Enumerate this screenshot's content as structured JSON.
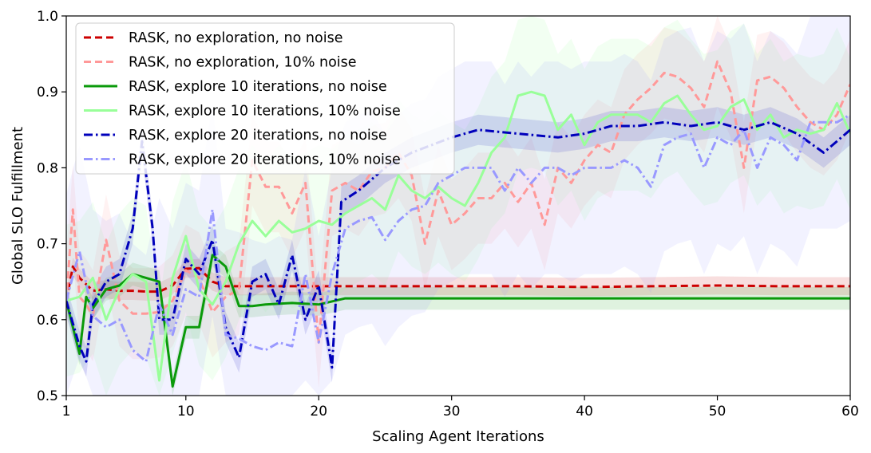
{
  "chart_data": {
    "type": "line",
    "title": "",
    "xlabel": "Scaling Agent Iterations",
    "ylabel": "Global SLO Fulfillment",
    "xlim": [
      1,
      60
    ],
    "ylim": [
      0.5,
      1.0
    ],
    "xticks": [
      1,
      10,
      20,
      30,
      40,
      50,
      60
    ],
    "xtick_labels": [
      "1",
      "10",
      "20",
      "30",
      "40",
      "50",
      "60"
    ],
    "yticks": [
      0.5,
      0.6,
      0.7,
      0.8,
      0.9,
      1.0
    ],
    "ytick_labels": [
      "0.5",
      "0.6",
      "0.7",
      "0.8",
      "0.9",
      "1.0"
    ],
    "grid": false,
    "legend_position": "top-left",
    "series": [
      {
        "name": "RASK, no exploration, no noise",
        "color": "#cc0000",
        "style": "dashed",
        "band": 0.012,
        "x": [
          1,
          1.5,
          2,
          3,
          4,
          5,
          6,
          7,
          8,
          9,
          10,
          11,
          12,
          13,
          14,
          16,
          18,
          20,
          22,
          25,
          30,
          35,
          40,
          45,
          50,
          55,
          60
        ],
        "values": [
          0.625,
          0.67,
          0.655,
          0.638,
          0.64,
          0.638,
          0.638,
          0.637,
          0.637,
          0.645,
          0.667,
          0.668,
          0.65,
          0.644,
          0.644,
          0.644,
          0.644,
          0.644,
          0.644,
          0.644,
          0.644,
          0.644,
          0.643,
          0.644,
          0.645,
          0.644,
          0.644
        ]
      },
      {
        "name": "RASK, no exploration, 10% noise",
        "color": "#ff9999",
        "style": "dashed",
        "band": 0.06,
        "x": [
          1,
          1.5,
          2,
          2.5,
          3,
          4,
          5,
          6,
          7,
          8,
          9,
          10,
          11,
          12,
          13,
          14,
          15,
          16,
          17,
          18,
          19,
          20,
          21,
          22,
          23,
          24,
          25,
          26,
          27,
          28,
          29,
          30,
          31,
          32,
          33,
          34,
          35,
          36,
          37,
          38,
          39,
          40,
          41,
          42,
          43,
          44,
          45,
          46,
          47,
          48,
          49,
          50,
          51,
          52,
          53,
          54,
          55,
          56,
          57,
          58,
          59,
          60
        ],
        "values": [
          0.625,
          0.745,
          0.63,
          0.62,
          0.605,
          0.705,
          0.625,
          0.608,
          0.608,
          0.61,
          0.625,
          0.665,
          0.655,
          0.61,
          0.63,
          0.64,
          0.81,
          0.775,
          0.775,
          0.74,
          0.78,
          0.57,
          0.77,
          0.78,
          0.77,
          0.795,
          0.8,
          0.82,
          0.79,
          0.7,
          0.77,
          0.725,
          0.74,
          0.76,
          0.76,
          0.78,
          0.755,
          0.78,
          0.725,
          0.8,
          0.78,
          0.81,
          0.83,
          0.82,
          0.87,
          0.89,
          0.905,
          0.925,
          0.92,
          0.905,
          0.88,
          0.94,
          0.9,
          0.8,
          0.915,
          0.92,
          0.905,
          0.88,
          0.86,
          0.85,
          0.87,
          0.91
        ]
      },
      {
        "name": "RASK, explore 10 iterations, no noise",
        "color": "#0a9a0a",
        "style": "solid",
        "band": 0.015,
        "x": [
          1,
          2,
          2.5,
          3,
          4,
          5,
          6,
          7,
          8,
          9,
          10,
          11,
          12,
          13,
          14,
          15,
          16,
          18,
          20,
          22,
          25,
          28,
          30,
          35,
          40,
          45,
          50,
          55,
          60
        ],
        "values": [
          0.625,
          0.555,
          0.63,
          0.615,
          0.64,
          0.645,
          0.66,
          0.655,
          0.65,
          0.512,
          0.59,
          0.59,
          0.685,
          0.67,
          0.618,
          0.618,
          0.62,
          0.622,
          0.62,
          0.628,
          0.628,
          0.628,
          0.628,
          0.628,
          0.628,
          0.628,
          0.628,
          0.628,
          0.628
        ]
      },
      {
        "name": "RASK, explore 10 iterations, 10% noise",
        "color": "#99ff99",
        "style": "solid",
        "band": 0.1,
        "x": [
          1,
          2,
          3,
          4,
          5,
          6,
          7,
          8,
          9,
          10,
          11,
          12,
          13,
          14,
          15,
          16,
          17,
          18,
          19,
          20,
          21,
          22,
          23,
          24,
          25,
          26,
          27,
          28,
          29,
          30,
          31,
          32,
          33,
          34,
          35,
          36,
          37,
          38,
          39,
          40,
          41,
          42,
          43,
          44,
          45,
          46,
          47,
          48,
          49,
          50,
          51,
          52,
          53,
          54,
          55,
          56,
          57,
          58,
          59,
          60
        ],
        "values": [
          0.625,
          0.63,
          0.655,
          0.6,
          0.64,
          0.66,
          0.65,
          0.52,
          0.655,
          0.71,
          0.64,
          0.62,
          0.65,
          0.7,
          0.73,
          0.71,
          0.73,
          0.715,
          0.72,
          0.73,
          0.725,
          0.74,
          0.75,
          0.76,
          0.745,
          0.79,
          0.77,
          0.76,
          0.775,
          0.76,
          0.75,
          0.78,
          0.82,
          0.84,
          0.895,
          0.9,
          0.895,
          0.85,
          0.87,
          0.83,
          0.86,
          0.87,
          0.87,
          0.87,
          0.86,
          0.885,
          0.895,
          0.87,
          0.85,
          0.855,
          0.88,
          0.89,
          0.85,
          0.87,
          0.84,
          0.85,
          0.845,
          0.85,
          0.885,
          0.845
        ]
      },
      {
        "name": "RASK, explore 20 iterations, no noise",
        "color": "#0000bb",
        "style": "dashdot",
        "band": 0.02,
        "x": [
          1,
          2,
          2.5,
          3,
          4,
          5,
          6,
          6.7,
          7.5,
          8,
          9,
          10,
          11,
          12,
          13,
          14,
          15,
          16,
          17,
          18,
          19,
          20,
          21,
          21.7,
          23,
          25,
          27,
          30,
          32,
          35,
          38,
          40,
          42,
          44,
          46,
          48,
          50,
          52,
          54,
          56,
          58,
          60
        ],
        "values": [
          0.625,
          0.565,
          0.545,
          0.62,
          0.65,
          0.66,
          0.72,
          0.835,
          0.72,
          0.6,
          0.6,
          0.68,
          0.66,
          0.705,
          0.59,
          0.55,
          0.65,
          0.66,
          0.62,
          0.685,
          0.6,
          0.645,
          0.537,
          0.755,
          0.77,
          0.8,
          0.82,
          0.84,
          0.85,
          0.845,
          0.84,
          0.845,
          0.855,
          0.855,
          0.86,
          0.855,
          0.86,
          0.85,
          0.86,
          0.845,
          0.82,
          0.85
        ]
      },
      {
        "name": "RASK, explore 20 iterations, 10% noise",
        "color": "#9999ff",
        "style": "dashdot",
        "band": 0.14,
        "x": [
          1,
          2,
          3,
          4,
          5,
          6,
          7,
          8,
          9,
          10,
          11,
          12,
          13,
          14,
          15,
          16,
          17,
          18,
          19,
          20,
          21,
          22,
          23,
          24,
          25,
          26,
          27,
          28,
          29,
          30,
          31,
          32,
          33,
          34,
          35,
          36,
          37,
          38,
          39,
          40,
          41,
          42,
          43,
          44,
          45,
          46,
          47,
          48,
          49,
          50,
          51,
          52,
          53,
          54,
          55,
          56,
          57,
          58,
          59,
          60
        ],
        "values": [
          0.625,
          0.69,
          0.605,
          0.59,
          0.6,
          0.56,
          0.545,
          0.62,
          0.58,
          0.64,
          0.63,
          0.745,
          0.58,
          0.575,
          0.565,
          0.56,
          0.57,
          0.565,
          0.66,
          0.57,
          0.66,
          0.72,
          0.73,
          0.735,
          0.705,
          0.73,
          0.745,
          0.75,
          0.78,
          0.79,
          0.8,
          0.8,
          0.8,
          0.77,
          0.8,
          0.78,
          0.8,
          0.8,
          0.79,
          0.8,
          0.8,
          0.8,
          0.81,
          0.8,
          0.775,
          0.83,
          0.84,
          0.845,
          0.8,
          0.84,
          0.83,
          0.85,
          0.8,
          0.84,
          0.83,
          0.81,
          0.86,
          0.86,
          0.86,
          0.87
        ]
      }
    ]
  }
}
